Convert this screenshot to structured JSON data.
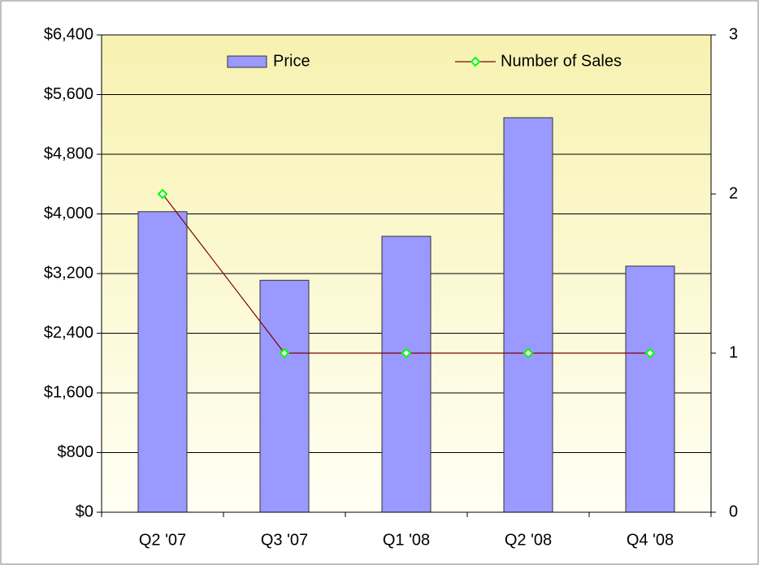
{
  "chart_data": {
    "type": "bar",
    "categories": [
      "Q2 '07",
      "Q3 '07",
      "Q1 '08",
      "Q2 '08",
      "Q4 '08"
    ],
    "series": [
      {
        "name": "Price",
        "type": "bar",
        "color": "#9999ff",
        "values": [
          4030,
          3110,
          3700,
          5290,
          3300
        ]
      },
      {
        "name": "Number of Sales",
        "type": "line",
        "color": "#800000",
        "marker_color": "#00ff00",
        "axis": "y2",
        "values": [
          2,
          1,
          1,
          1,
          1
        ]
      }
    ],
    "ylim": [
      0,
      6400
    ],
    "yticks": [
      {
        "value": 0,
        "label": "$0"
      },
      {
        "value": 800,
        "label": "$800"
      },
      {
        "value": 1600,
        "label": "$1,600"
      },
      {
        "value": 2400,
        "label": "$2,400"
      },
      {
        "value": 3200,
        "label": "$3,200"
      },
      {
        "value": 4000,
        "label": "$4,000"
      },
      {
        "value": 4800,
        "label": "$4,800"
      },
      {
        "value": 5600,
        "label": "$5,600"
      },
      {
        "value": 6400,
        "label": "$6,400"
      }
    ],
    "y2lim": [
      0,
      3
    ],
    "y2ticks": [
      0,
      1,
      2,
      3
    ],
    "grid": true,
    "legend": "top"
  }
}
